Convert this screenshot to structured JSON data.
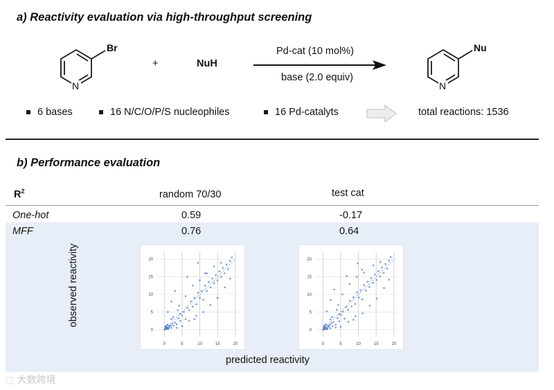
{
  "section_a": {
    "title": "a) Reactivity evaluation via high-throughput screening",
    "reactant_substituent": "Br",
    "ring_atom": "N",
    "plus": "+",
    "nucleophile": "NuH",
    "condition_top": "Pd-cat (10 mol%)",
    "condition_bottom": "base (2.0 equiv)",
    "product_substituent": "Nu",
    "bullets": [
      "6 bases",
      "16 N/C/O/P/S nucleophiles",
      "16 Pd-catalyts"
    ],
    "total": "total reactions: 1536"
  },
  "section_b": {
    "title": "b) Performance evaluation",
    "r2_label": "R",
    "r2_sup": "2",
    "col1": "random 70/30",
    "col2": "test cat",
    "rows": [
      {
        "name": "One-hot",
        "v1": "0.59",
        "v2": "-0.17"
      },
      {
        "name": "MFF",
        "v1": "0.76",
        "v2": "0.64"
      }
    ],
    "ylabel": "observed reactivity",
    "xlabel": "predicted reactivity"
  },
  "watermark": "大数跨境",
  "chart_data": [
    {
      "type": "scatter",
      "title": "",
      "xlabel": "predicted reactivity",
      "ylabel": "observed reactivity",
      "xlim": [
        -2,
        21
      ],
      "ylim": [
        -2,
        22
      ],
      "xticks": [
        0,
        5,
        10,
        15,
        20
      ],
      "yticks": [
        0,
        5,
        10,
        15,
        20
      ],
      "grid": true,
      "diagonal": true,
      "points": [
        [
          0.2,
          0.1
        ],
        [
          0.5,
          0.3
        ],
        [
          0.8,
          0.2
        ],
        [
          1.0,
          0.6
        ],
        [
          1.2,
          0.4
        ],
        [
          0.3,
          0.9
        ],
        [
          0.6,
          1.1
        ],
        [
          1.5,
          0.8
        ],
        [
          0.9,
          1.4
        ],
        [
          1.8,
          1.2
        ],
        [
          2.0,
          0.5
        ],
        [
          2.3,
          1.7
        ],
        [
          0.4,
          0.2
        ],
        [
          0.7,
          0.6
        ],
        [
          1.1,
          0.2
        ],
        [
          0.2,
          0.5
        ],
        [
          1.4,
          1.0
        ],
        [
          2.6,
          1.1
        ],
        [
          0.1,
          0.0
        ],
        [
          0.5,
          0.7
        ],
        [
          3.0,
          2.0
        ],
        [
          3.5,
          1.5
        ],
        [
          4.0,
          3.2
        ],
        [
          2.5,
          3.5
        ],
        [
          4.5,
          2.5
        ],
        [
          5.0,
          4.0
        ],
        [
          3.8,
          5.5
        ],
        [
          5.5,
          5.0
        ],
        [
          6.0,
          3.0
        ],
        [
          6.5,
          6.2
        ],
        [
          7.0,
          5.5
        ],
        [
          4.2,
          6.8
        ],
        [
          7.5,
          8.0
        ],
        [
          8.0,
          6.5
        ],
        [
          8.5,
          9.0
        ],
        [
          9.0,
          7.2
        ],
        [
          9.5,
          10.5
        ],
        [
          10.0,
          9.0
        ],
        [
          10.5,
          11.0
        ],
        [
          11.0,
          8.5
        ],
        [
          11.5,
          12.5
        ],
        [
          12.0,
          11.0
        ],
        [
          12.5,
          13.5
        ],
        [
          13.0,
          12.0
        ],
        [
          13.5,
          14.5
        ],
        [
          14.0,
          13.2
        ],
        [
          14.5,
          15.5
        ],
        [
          15.0,
          14.0
        ],
        [
          15.5,
          16.5
        ],
        [
          16.0,
          15.0
        ],
        [
          16.5,
          17.5
        ],
        [
          17.0,
          16.0
        ],
        [
          17.5,
          18.5
        ],
        [
          18.0,
          17.2
        ],
        [
          18.5,
          19.5
        ],
        [
          19.0,
          20.5
        ],
        [
          12.0,
          16.0
        ],
        [
          10.0,
          14.0
        ],
        [
          8.0,
          12.5
        ],
        [
          6.0,
          9.5
        ],
        [
          5.0,
          1.0
        ],
        [
          7.0,
          2.5
        ],
        [
          9.0,
          4.0
        ],
        [
          11.0,
          5.0
        ],
        [
          13.0,
          7.0
        ],
        [
          2.0,
          8.0
        ],
        [
          3.0,
          11.0
        ],
        [
          6.5,
          15.0
        ],
        [
          9.5,
          19.0
        ],
        [
          15.0,
          9.0
        ],
        [
          17.0,
          12.0
        ],
        [
          14.0,
          18.0
        ],
        [
          1.0,
          5.0
        ],
        [
          2.0,
          3.0
        ],
        [
          3.5,
          0.5
        ],
        [
          4.5,
          4.5
        ],
        [
          8.5,
          3.0
        ],
        [
          11.5,
          16.0
        ],
        [
          16.0,
          19.0
        ],
        [
          18.5,
          14.5
        ]
      ]
    },
    {
      "type": "scatter",
      "title": "",
      "xlabel": "predicted reactivity",
      "ylabel": "observed reactivity",
      "xlim": [
        -2,
        21
      ],
      "ylim": [
        -2,
        22
      ],
      "xticks": [
        0,
        5,
        10,
        15,
        20
      ],
      "yticks": [
        0,
        5,
        10,
        15,
        20
      ],
      "grid": true,
      "diagonal": true,
      "points": [
        [
          0.2,
          0.1
        ],
        [
          0.5,
          0.4
        ],
        [
          0.8,
          0.2
        ],
        [
          1.0,
          0.7
        ],
        [
          1.3,
          0.3
        ],
        [
          0.3,
          1.0
        ],
        [
          0.6,
          1.2
        ],
        [
          1.6,
          0.8
        ],
        [
          0.9,
          1.5
        ],
        [
          1.9,
          1.3
        ],
        [
          2.1,
          0.4
        ],
        [
          2.4,
          1.8
        ],
        [
          0.4,
          0.2
        ],
        [
          0.7,
          0.5
        ],
        [
          1.2,
          0.1
        ],
        [
          0.2,
          0.6
        ],
        [
          1.5,
          1.1
        ],
        [
          2.7,
          1.0
        ],
        [
          0.1,
          0.0
        ],
        [
          0.5,
          0.8
        ],
        [
          3.0,
          2.2
        ],
        [
          3.6,
          1.4
        ],
        [
          4.1,
          3.3
        ],
        [
          2.6,
          3.6
        ],
        [
          4.6,
          2.4
        ],
        [
          5.1,
          4.2
        ],
        [
          3.9,
          5.6
        ],
        [
          5.6,
          5.1
        ],
        [
          6.1,
          3.1
        ],
        [
          6.6,
          6.4
        ],
        [
          7.1,
          5.6
        ],
        [
          4.3,
          7.0
        ],
        [
          7.6,
          8.2
        ],
        [
          8.1,
          6.6
        ],
        [
          8.6,
          9.2
        ],
        [
          9.1,
          7.3
        ],
        [
          9.6,
          10.6
        ],
        [
          10.1,
          9.1
        ],
        [
          10.6,
          11.2
        ],
        [
          11.1,
          8.6
        ],
        [
          11.6,
          12.6
        ],
        [
          12.1,
          11.1
        ],
        [
          12.6,
          13.6
        ],
        [
          13.1,
          12.1
        ],
        [
          13.6,
          14.6
        ],
        [
          14.1,
          13.3
        ],
        [
          14.6,
          15.6
        ],
        [
          15.1,
          14.1
        ],
        [
          15.6,
          16.6
        ],
        [
          16.1,
          15.1
        ],
        [
          16.6,
          17.6
        ],
        [
          17.1,
          16.1
        ],
        [
          17.6,
          18.6
        ],
        [
          18.1,
          17.3
        ],
        [
          18.6,
          19.6
        ],
        [
          19.1,
          20.6
        ],
        [
          11.0,
          17.0
        ],
        [
          9.5,
          15.0
        ],
        [
          7.5,
          13.0
        ],
        [
          5.5,
          10.0
        ],
        [
          5.0,
          0.8
        ],
        [
          7.2,
          2.2
        ],
        [
          9.2,
          3.8
        ],
        [
          11.2,
          4.6
        ],
        [
          13.2,
          6.8
        ],
        [
          2.2,
          8.4
        ],
        [
          3.2,
          11.4
        ],
        [
          6.7,
          15.2
        ],
        [
          9.8,
          18.8
        ],
        [
          15.2,
          8.8
        ],
        [
          17.2,
          11.8
        ],
        [
          14.2,
          18.2
        ],
        [
          1.1,
          5.2
        ],
        [
          2.1,
          2.9
        ],
        [
          3.6,
          0.6
        ],
        [
          4.6,
          4.4
        ],
        [
          8.6,
          2.8
        ],
        [
          11.6,
          16.2
        ],
        [
          16.2,
          19.2
        ],
        [
          18.6,
          14.2
        ]
      ]
    }
  ]
}
